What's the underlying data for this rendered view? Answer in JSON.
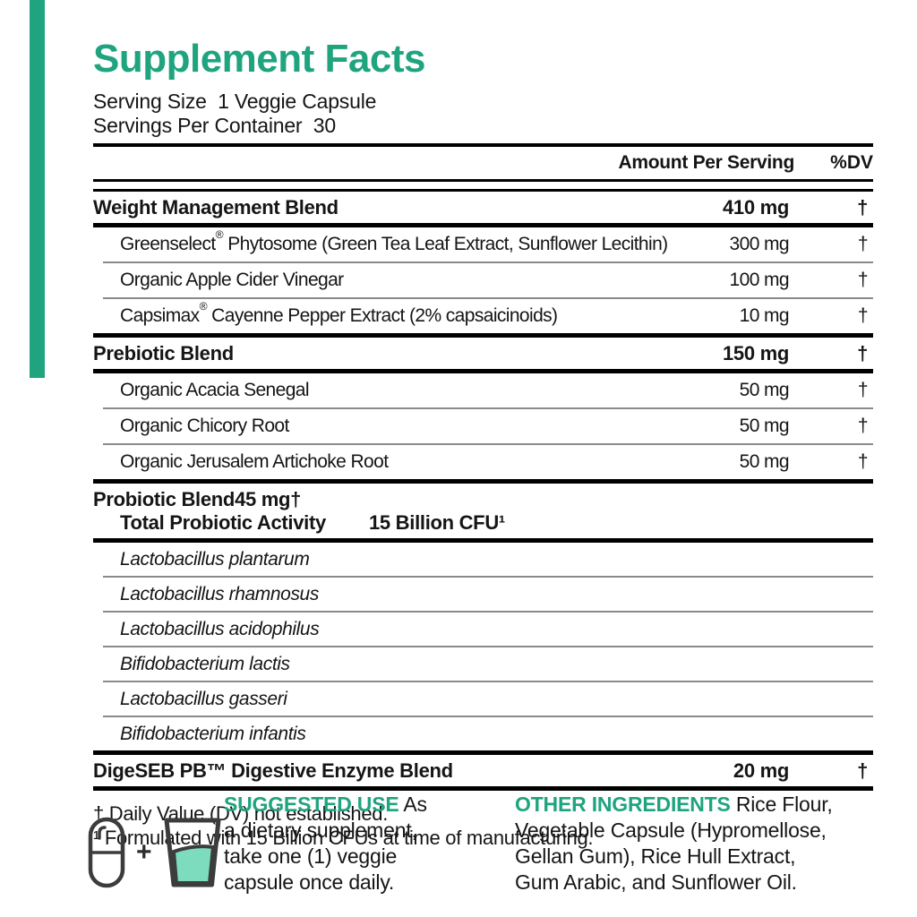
{
  "colors": {
    "teal": "#1FA47F",
    "water": "#7DDCBE",
    "icon_stroke": "#3C3C3C"
  },
  "header": {
    "title": "Supplement Facts",
    "serving_size": "Serving Size  1 Veggie Capsule",
    "servings_per_container": "Servings Per Container  30"
  },
  "table": {
    "col_amount": "Amount Per Serving",
    "col_dv": "%DV",
    "rows": [
      {
        "name": "Weight Management Blend",
        "amount": "410 mg",
        "dv": "†"
      },
      {
        "segments": [
          {
            "t": "Greenselect"
          },
          {
            "t": "®",
            "sup": true
          },
          {
            "t": " Phytosome (Green Tea Leaf Extract, Sunflower Lecithin)"
          }
        ],
        "amount": "300 mg",
        "dv": "†"
      },
      {
        "name": "Organic Apple Cider Vinegar",
        "amount": "100 mg",
        "dv": "†"
      },
      {
        "segments": [
          {
            "t": "Capsimax"
          },
          {
            "t": "®",
            "sup": true
          },
          {
            "t": " Cayenne Pepper Extract (2% capsaicinoids)"
          }
        ],
        "amount": "10 mg",
        "dv": "†"
      },
      {
        "name": "Prebiotic Blend",
        "amount": "150 mg",
        "dv": "†"
      },
      {
        "name": "Organic Acacia Senegal",
        "amount": "50 mg",
        "dv": "†"
      },
      {
        "name": "Organic Chicory Root",
        "amount": "50 mg",
        "dv": "†"
      },
      {
        "name": "Organic Jerusalem Artichoke Root",
        "amount": "50 mg",
        "dv": "†"
      },
      {
        "name": "Probiotic Blend",
        "amount": "45 mg",
        "dv": "†",
        "sub_name": "Total Probiotic Activity",
        "sub_amount": "15 Billion CFU¹"
      },
      {
        "name": "Lactobacillus plantarum"
      },
      {
        "name": "Lactobacillus rhamnosus"
      },
      {
        "name": "Lactobacillus acidophilus"
      },
      {
        "name": "Bifidobacterium lactis"
      },
      {
        "name": "Lactobacillus gasseri"
      },
      {
        "name": "Bifidobacterium infantis"
      },
      {
        "name": "DigeSEB PB™ Digestive Enzyme Blend",
        "amount": "20 mg",
        "dv": "†"
      }
    ]
  },
  "footnotes": {
    "dagger": "† Daily Value (DV) not established.",
    "cfu": "¹ Formulated with 15 Billion CFUs at time of manufacturing."
  },
  "usage": {
    "label": "SUGGESTED USE",
    "line1_rest": " As",
    "line2": "a dietary supplement,",
    "line3": "take one (1) veggie",
    "line4": "capsule once daily.",
    "plus": "+"
  },
  "other_ingredients": {
    "label": "OTHER INGREDIENTS",
    "line1_rest": " Rice Flour,",
    "line2": "Vegetable Capsule (Hypromellose,",
    "line3": "Gellan Gum), Rice Hull Extract,",
    "line4": "Gum Arabic, and Sunflower Oil."
  }
}
